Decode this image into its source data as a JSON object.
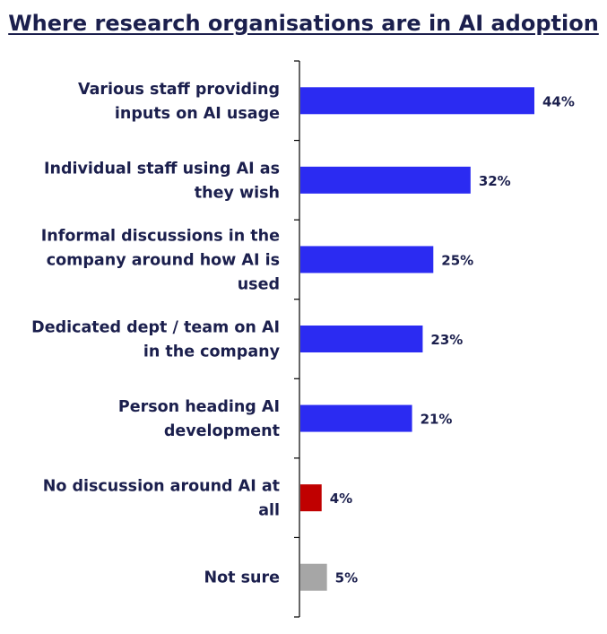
{
  "chart_data": {
    "type": "bar",
    "orientation": "horizontal",
    "title": "Where research organisations are in AI adoption",
    "categories": [
      [
        "Various staff providing",
        "inputs on AI usage"
      ],
      [
        "Individual staff using AI as",
        "they wish"
      ],
      [
        "Informal discussions in the",
        "company around how AI is",
        "used"
      ],
      [
        "Dedicated dept / team on AI",
        "in the company"
      ],
      [
        "Person heading AI",
        "development"
      ],
      [
        "No discussion around AI at",
        "all"
      ],
      [
        "Not sure"
      ]
    ],
    "values": [
      44,
      32,
      25,
      23,
      21,
      4,
      5
    ],
    "value_labels": [
      "44%",
      "32%",
      "25%",
      "23%",
      "21%",
      "4%",
      "5%"
    ],
    "bar_colors": [
      "#2b2bf2",
      "#2b2bf2",
      "#2b2bf2",
      "#2b2bf2",
      "#2b2bf2",
      "#c00000",
      "#a6a6a6"
    ],
    "xlim": [
      0,
      50
    ],
    "xlabel": "",
    "ylabel": "",
    "grid": false,
    "legend": "none"
  }
}
